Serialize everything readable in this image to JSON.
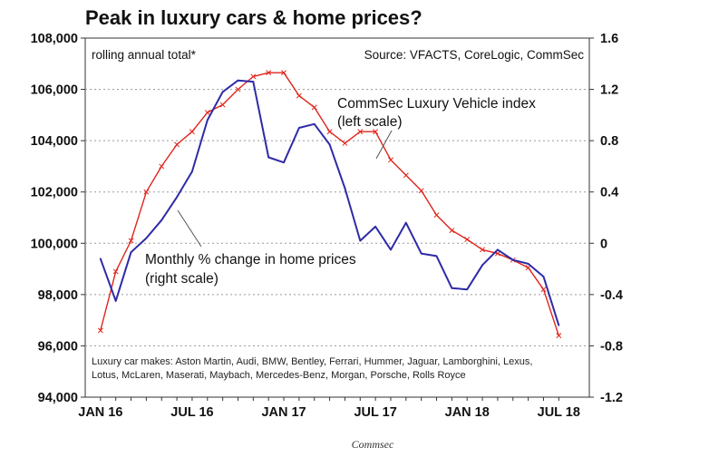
{
  "chart_data": {
    "type": "line",
    "title": "Peak in luxury cars & home prices?",
    "subtitle": "rolling annual total*",
    "source": "Source: VFACTS, CoreLogic, CommSec",
    "credit": "Commsec",
    "footnote_lines": [
      "Luxury car makes: Aston Martin, Audi, BMW, Bentley, Ferrari, Hummer, Jaguar, Lamborghini, Lexus,",
      "Lotus, McLaren, Maserati, Maybach, Mercedes-Benz, Morgan, Porsche, Rolls Royce"
    ],
    "x_tick_labels": [
      "JAN 16",
      "JUL 16",
      "JAN 17",
      "JUL 17",
      "JAN 18",
      "JUL 18"
    ],
    "x_tick_months": [
      0,
      6,
      12,
      18,
      24,
      30
    ],
    "x_range_months": [
      -1,
      32
    ],
    "left_axis": {
      "ylim": [
        94000,
        108000
      ],
      "ticks": [
        "94,000",
        "96,000",
        "98,000",
        "100,000",
        "102,000",
        "104,000",
        "106,000",
        "108,000"
      ],
      "tick_values": [
        94000,
        96000,
        98000,
        100000,
        102000,
        104000,
        106000,
        108000
      ]
    },
    "right_axis": {
      "ylim": [
        -1.2,
        1.6
      ],
      "ticks": [
        "-1.2",
        "-0.8",
        "-0.4",
        "0",
        "0.4",
        "0.8",
        "1.2",
        "1.6"
      ],
      "tick_values": [
        -1.2,
        -0.8,
        -0.4,
        0,
        0.4,
        0.8,
        1.2,
        1.6
      ]
    },
    "grid": true,
    "series": [
      {
        "name": "CommSec Luxury Vehicle index",
        "label_lines": [
          "CommSec Luxury Vehicle index",
          "(left scale)"
        ],
        "axis": "left",
        "color": "#e0241b",
        "markers": "cross",
        "x": [
          0,
          1,
          2,
          3,
          4,
          5,
          6,
          7,
          8,
          9,
          10,
          11,
          12,
          13,
          14,
          15,
          16,
          17,
          18,
          19,
          20,
          21,
          22,
          23,
          24,
          25,
          26,
          27,
          28,
          29,
          30
        ],
        "values": [
          96600,
          98900,
          100100,
          102000,
          103000,
          103850,
          104350,
          105100,
          105400,
          106000,
          106500,
          106650,
          106650,
          105750,
          105300,
          104350,
          103900,
          104350,
          104350,
          103250,
          102650,
          102050,
          101100,
          100500,
          100150,
          99750,
          99600,
          99350,
          99050,
          98200,
          96400
        ]
      },
      {
        "name": "Monthly % change in home prices",
        "label_lines": [
          "Monthly % change in home prices",
          "(right scale)"
        ],
        "axis": "right",
        "color": "#2e2ba6",
        "markers": "none",
        "x": [
          0,
          1,
          2,
          3,
          4,
          5,
          6,
          7,
          8,
          9,
          10,
          11,
          12,
          13,
          14,
          15,
          16,
          17,
          18,
          19,
          20,
          21,
          22,
          23,
          24,
          25,
          26,
          27,
          28,
          29,
          30
        ],
        "values": [
          -0.12,
          -0.45,
          -0.07,
          0.04,
          0.18,
          0.36,
          0.56,
          0.96,
          1.18,
          1.27,
          1.26,
          0.67,
          0.63,
          0.9,
          0.93,
          0.77,
          0.43,
          0.02,
          0.13,
          -0.05,
          0.16,
          -0.08,
          -0.1,
          -0.35,
          -0.36,
          -0.17,
          -0.05,
          -0.13,
          -0.16,
          -0.26,
          -0.64
        ]
      }
    ]
  }
}
